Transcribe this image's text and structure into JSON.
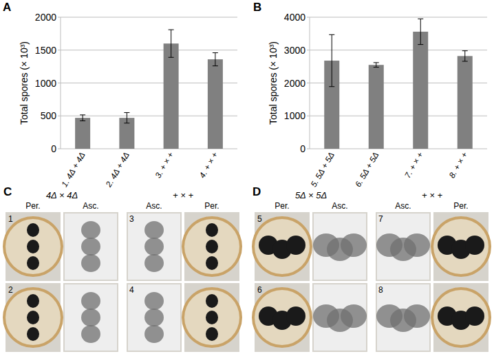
{
  "chart_data": [
    {
      "type": "bar",
      "title": "A",
      "y_label": "Total spores (× 10³)",
      "categories": [
        "1. 4Δ + 4Δ",
        "2. 4Δ + 4Δ",
        "3. + × +",
        "4. + × +"
      ],
      "values": [
        470,
        470,
        1600,
        1360
      ],
      "errors": [
        45,
        80,
        210,
        100
      ],
      "color": "#808080",
      "ylim": [
        0,
        2000
      ],
      "yticks": [
        0,
        500,
        1000,
        1500,
        2000
      ],
      "grid": true
    },
    {
      "type": "bar",
      "title": "B",
      "y_label": "Total spores (× 10³)",
      "categories": [
        "5. 5Δ + 5Δ",
        "6. 5Δ + 5Δ",
        "7. + × +",
        "8. + × +"
      ],
      "values": [
        2680,
        2550,
        3560,
        2820
      ],
      "errors": [
        790,
        70,
        390,
        160
      ],
      "color": "#808080",
      "ylim": [
        0,
        4000
      ],
      "yticks": [
        0,
        1000,
        2000,
        3000,
        4000
      ],
      "grid": true
    }
  ],
  "photo_panels": [
    {
      "label": "C",
      "groups": [
        {
          "title": "4Δ × 4Δ",
          "columns": [
            "Per.",
            "Asc."
          ],
          "numbers": [
            "1",
            "2"
          ]
        },
        {
          "title": "+ × +",
          "columns": [
            "Asc.",
            "Per."
          ],
          "numbers": [
            "3",
            "4"
          ]
        }
      ]
    },
    {
      "label": "D",
      "groups": [
        {
          "title": "5Δ × 5Δ",
          "columns": [
            "Per.",
            "Asc."
          ],
          "numbers": [
            "5",
            "6"
          ]
        },
        {
          "title": "+ × +",
          "columns": [
            "Asc.",
            "Per."
          ],
          "numbers": [
            "7",
            "8"
          ]
        }
      ]
    }
  ]
}
